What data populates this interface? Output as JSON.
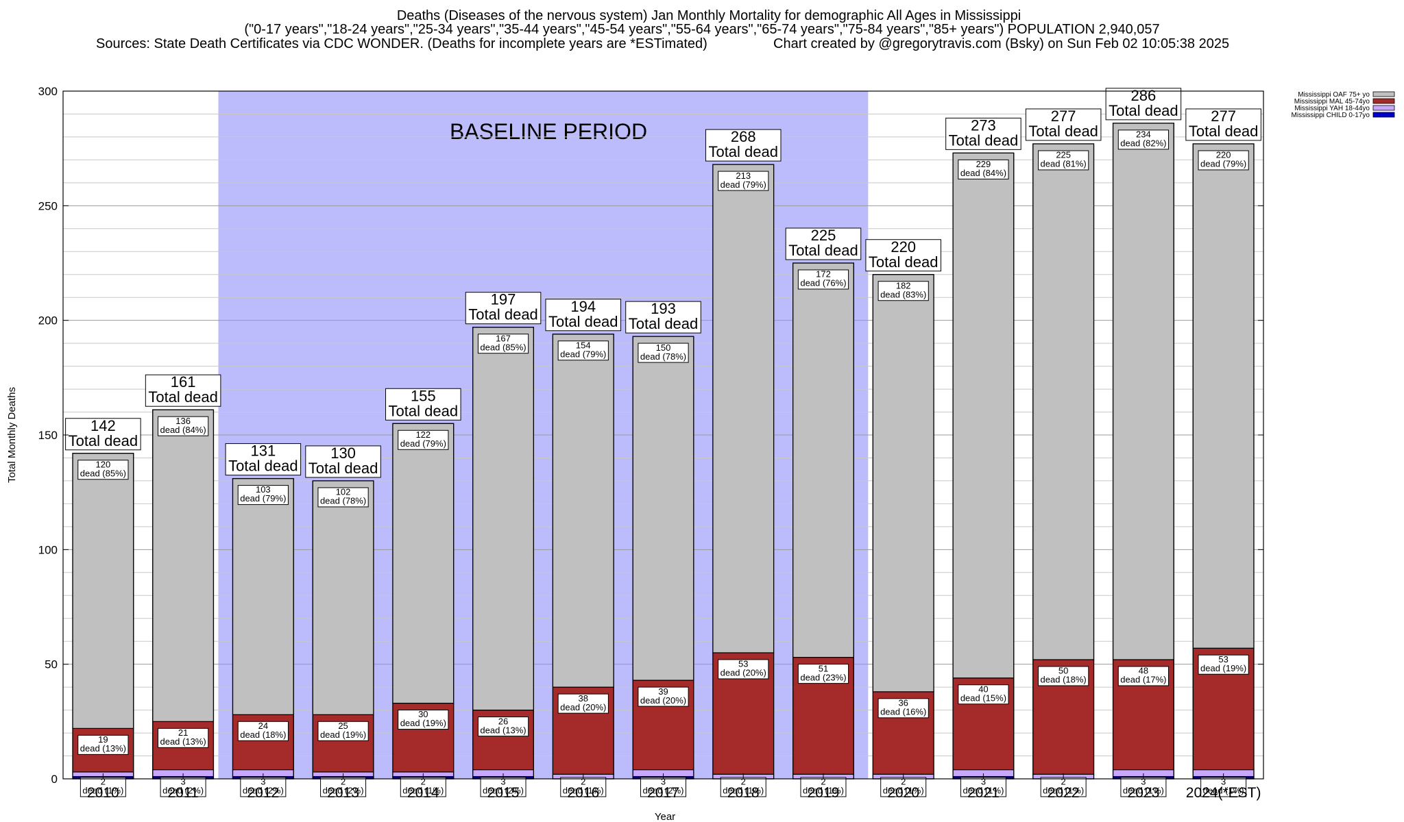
{
  "header": {
    "title_line1": "Deaths (Diseases of the nervous system) Jan Monthly Mortality for demographic All Ages in Mississippi",
    "title_line2": "(\"0-17 years\",\"18-24 years\",\"25-34 years\",\"35-44 years\",\"45-54 years\",\"55-64 years\",\"65-74 years\",\"75-84 years\",\"85+ years\") POPULATION 2,940,057",
    "sources": "Sources: State Death Certificates via CDC WONDER. (Deaths for incomplete years are *ESTimated)",
    "credit": "Chart created by @gregorytravis.com (Bsky) on Sun Feb 02 10:05:38 2025"
  },
  "chart_data": {
    "type": "bar",
    "stacked": true,
    "xlabel": "Year",
    "ylabel": "Total Monthly Deaths",
    "ylim": [
      0,
      300
    ],
    "yticks": [
      "0",
      "50",
      "100",
      "150",
      "200",
      "250",
      "300"
    ],
    "grid": true,
    "categories": [
      "2010",
      "2011",
      "2012",
      "2013",
      "2014",
      "2015",
      "2016",
      "2017",
      "2018",
      "2019",
      "2020",
      "2021",
      "2022",
      "2023",
      "2024(*EST)"
    ],
    "baseline_label": "BASELINE PERIOD",
    "baseline_range": [
      "2012",
      "2019"
    ],
    "total_label": "Total dead",
    "segment_word": "dead",
    "totals": [
      142,
      161,
      131,
      130,
      155,
      197,
      194,
      193,
      268,
      225,
      220,
      273,
      277,
      286,
      277
    ],
    "series": [
      {
        "name": "Mississippi CHILD 0-17yo",
        "color": "#0000cc",
        "values": [
          1,
          1,
          1,
          1,
          1,
          1,
          0,
          1,
          0,
          0,
          0,
          1,
          0,
          1,
          1
        ],
        "pct_labels": []
      },
      {
        "name": "Mississippi YAH 18-44yo",
        "color": "#c8a8ff",
        "values": [
          2,
          3,
          3,
          2,
          2,
          3,
          2,
          3,
          2,
          2,
          2,
          3,
          2,
          3,
          3
        ],
        "pct_labels": [
          "(1%)",
          "(2%)",
          "(2%)",
          "(2%)",
          "(1%)",
          "(2%)",
          "(1%)",
          "(2%)",
          "(1%)",
          "(1%)",
          "(1%)",
          "(1%)",
          "(1%)",
          "(1%)",
          "(1%)"
        ]
      },
      {
        "name": "Mississippi MAL 45-74yo",
        "color": "#a52a2a",
        "values": [
          19,
          21,
          24,
          25,
          30,
          26,
          38,
          39,
          53,
          51,
          36,
          40,
          50,
          48,
          53
        ],
        "pct_labels": [
          "(13%)",
          "(13%)",
          "(18%)",
          "(19%)",
          "(19%)",
          "(13%)",
          "(20%)",
          "(20%)",
          "(20%)",
          "(23%)",
          "(16%)",
          "(15%)",
          "(18%)",
          "(17%)",
          "(19%)"
        ]
      },
      {
        "name": "Mississippi OAF 75+ yo",
        "color": "#c0c0c0",
        "values": [
          120,
          136,
          103,
          102,
          122,
          167,
          154,
          150,
          213,
          172,
          182,
          229,
          225,
          234,
          220
        ],
        "pct_labels": [
          "(85%)",
          "(84%)",
          "(79%)",
          "(78%)",
          "(79%)",
          "(85%)",
          "(79%)",
          "(78%)",
          "(79%)",
          "(76%)",
          "(83%)",
          "(84%)",
          "(81%)",
          "(82%)",
          "(79%)"
        ]
      }
    ],
    "legend": {
      "position": "top-right",
      "entries": [
        {
          "label": "Mississippi OAF 75+ yo",
          "color": "#c0c0c0"
        },
        {
          "label": "Mississippi MAL 45-74yo",
          "color": "#a52a2a"
        },
        {
          "label": "Mississippi YAH 18-44yo",
          "color": "#c8a8ff"
        },
        {
          "label": "Mississippi CHILD 0-17yo",
          "color": "#0000cc"
        }
      ]
    }
  }
}
